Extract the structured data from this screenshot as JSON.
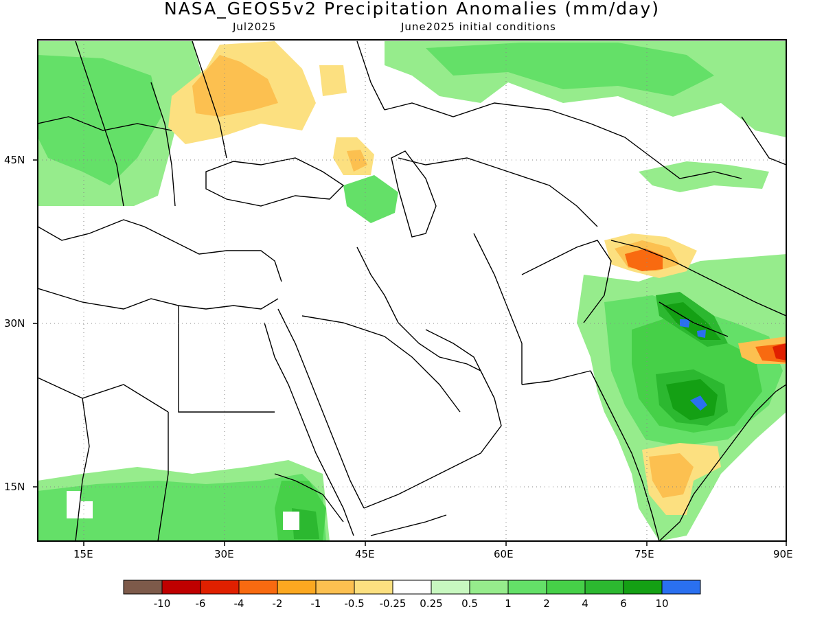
{
  "title": "NASA_GEOS5v2 Precipitation Anomalies (mm/day)",
  "subtitle_left": "Jul2025",
  "subtitle_right": "June2025 initial conditions",
  "map": {
    "projection": "lat-lon",
    "lon_range": [
      10,
      90
    ],
    "lat_range": [
      10,
      55
    ],
    "lon_ticks": [
      "15E",
      "30E",
      "45E",
      "60E",
      "75E",
      "90E"
    ],
    "lat_ticks": [
      "45N",
      "30N",
      "15N"
    ],
    "grid": "dotted",
    "region": "Eastern Europe, Middle East, Central and South Asia, Northeast Africa"
  },
  "colorbar": {
    "labels": [
      "-10",
      "-6",
      "-4",
      "-2",
      "-1",
      "-0.5",
      "-0.25",
      "0.25",
      "0.5",
      "1",
      "2",
      "4",
      "6",
      "10"
    ],
    "colors": [
      "#7d5a4a",
      "#bf0000",
      "#e02000",
      "#f86a10",
      "#fca820",
      "#fcc050",
      "#fce080",
      "#ffffff",
      "#c8f8c0",
      "#96ec8c",
      "#64e068",
      "#46d048",
      "#2cb830",
      "#14a014",
      "#2a70f0"
    ]
  }
}
